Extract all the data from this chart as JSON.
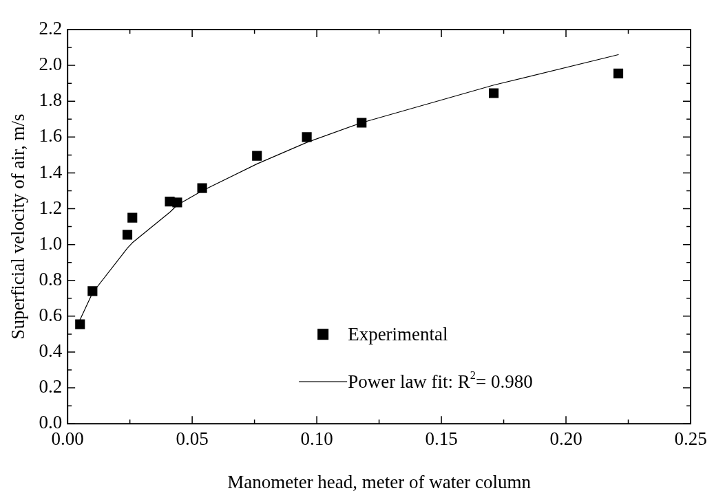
{
  "chart_data": {
    "type": "scatter",
    "xlabel": "Manometer head, meter of water column",
    "ylabel": "Superficial velocity of air, m/s",
    "xlim": [
      0,
      0.25
    ],
    "ylim": [
      0,
      2.2
    ],
    "xticks": [
      {
        "value": 0,
        "label": "0.00"
      },
      {
        "value": 0.025,
        "label": null
      },
      {
        "value": 0.05,
        "label": "0.05"
      },
      {
        "value": 0.075,
        "label": null
      },
      {
        "value": 0.1,
        "label": "0.10"
      },
      {
        "value": 0.125,
        "label": null
      },
      {
        "value": 0.15,
        "label": "0.15"
      },
      {
        "value": 0.175,
        "label": null
      },
      {
        "value": 0.2,
        "label": "0.20"
      },
      {
        "value": 0.225,
        "label": null
      },
      {
        "value": 0.25,
        "label": "0.25"
      }
    ],
    "yticks": [
      {
        "value": 0,
        "label": "0.0"
      },
      {
        "value": 0.1,
        "label": null
      },
      {
        "value": 0.2,
        "label": "0.2"
      },
      {
        "value": 0.3,
        "label": null
      },
      {
        "value": 0.4,
        "label": "0.4"
      },
      {
        "value": 0.5,
        "label": null
      },
      {
        "value": 0.6,
        "label": "0.6"
      },
      {
        "value": 0.7,
        "label": null
      },
      {
        "value": 0.8,
        "label": "0.8"
      },
      {
        "value": 0.9,
        "label": null
      },
      {
        "value": 1.0,
        "label": "1.0"
      },
      {
        "value": 1.1,
        "label": null
      },
      {
        "value": 1.2,
        "label": "1.2"
      },
      {
        "value": 1.3,
        "label": null
      },
      {
        "value": 1.4,
        "label": "1.4"
      },
      {
        "value": 1.5,
        "label": null
      },
      {
        "value": 1.6,
        "label": "1.6"
      },
      {
        "value": 1.7,
        "label": null
      },
      {
        "value": 1.8,
        "label": "1.8"
      },
      {
        "value": 1.9,
        "label": null
      },
      {
        "value": 2.0,
        "label": "2.0"
      },
      {
        "value": 2.1,
        "label": null
      },
      {
        "value": 2.2,
        "label": "2.2"
      }
    ],
    "grid": false,
    "legend": "bottom right",
    "series": [
      {
        "name": "Experimental",
        "marker": "square",
        "color": "#000000",
        "x": [
          0.005,
          0.01,
          0.024,
          0.026,
          0.041,
          0.044,
          0.054,
          0.076,
          0.096,
          0.118,
          0.171,
          0.221
        ],
        "values": [
          0.555,
          0.74,
          1.055,
          1.15,
          1.24,
          1.235,
          1.315,
          1.495,
          1.6,
          1.68,
          1.845,
          1.955
        ]
      },
      {
        "name": "Power law fit: R$^{2}$= 0.980",
        "type": "line",
        "marker": "none",
        "line_style": "solid",
        "color": "#000000",
        "x": [
          0.005,
          0.01,
          0.024,
          0.026,
          0.041,
          0.044,
          0.054,
          0.076,
          0.096,
          0.118,
          0.171,
          0.221
        ],
        "values": [
          0.58,
          0.73,
          0.98,
          1.01,
          1.18,
          1.22,
          1.3,
          1.45,
          1.57,
          1.68,
          1.89,
          2.06
        ]
      }
    ]
  }
}
